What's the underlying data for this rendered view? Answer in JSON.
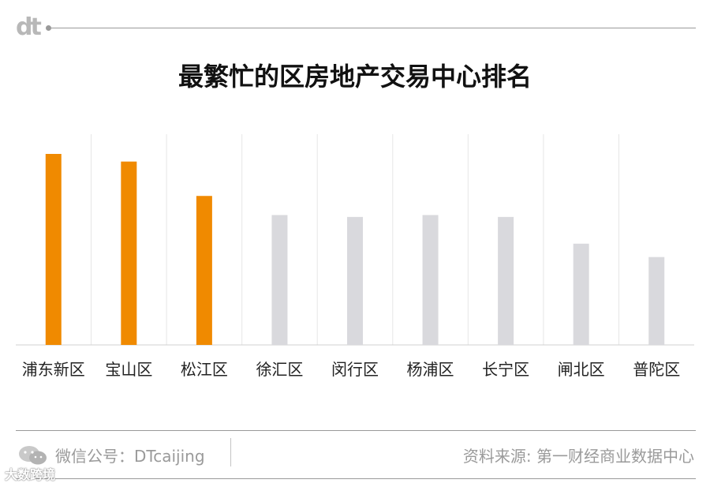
{
  "header": {
    "logo_text": "dt",
    "title": "最繁忙的区房地产交易中心排名"
  },
  "chart_data": {
    "type": "bar",
    "title": "最繁忙的区房地产交易中心排名",
    "categories": [
      "浦东新区",
      "宝山区",
      "松江区",
      "徐汇区",
      "闵行区",
      "杨浦区",
      "长宁区",
      "闸北区",
      "普陀区"
    ],
    "values": [
      100,
      96,
      78,
      68,
      67,
      68,
      67,
      53,
      46
    ],
    "highlight_count": 3,
    "colors": {
      "highlight": "#F08A00",
      "normal": "#D9D9DD",
      "grid": "#E6E6E6",
      "baseline": "#D0D0D0"
    },
    "ylim": [
      0,
      100
    ],
    "grid": true,
    "xlabel": "",
    "ylabel": ""
  },
  "footer": {
    "wechat_label": "微信公号：DTcaijing",
    "source": "资料来源: 第一财经商业数据中心",
    "watermark": "大数跨境",
    "icons": [
      "wechat-icon"
    ]
  }
}
